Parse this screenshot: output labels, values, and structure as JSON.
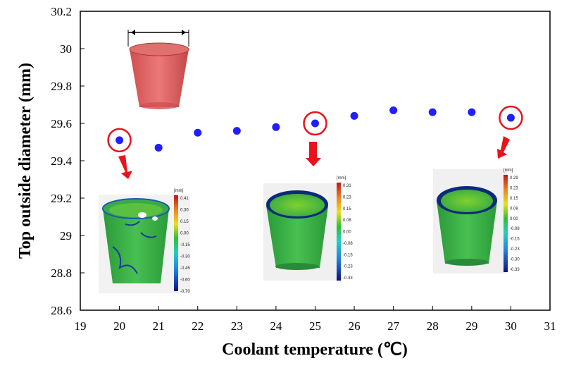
{
  "chart_data": {
    "type": "scatter",
    "title": "",
    "xlabel": "Coolant temperature (℃)",
    "ylabel": "Top outside diameter (mm)",
    "xlim": [
      19,
      31
    ],
    "ylim": [
      28.6,
      30.2
    ],
    "xticks": [
      "19",
      "20",
      "21",
      "22",
      "23",
      "24",
      "25",
      "26",
      "27",
      "28",
      "29",
      "30",
      "31"
    ],
    "yticks": [
      "28.6",
      "28.8",
      "29",
      "29.2",
      "29.4",
      "29.6",
      "29.8",
      "30",
      "30.2"
    ],
    "series": [
      {
        "name": "Top outside diameter",
        "color": "#1f1fff",
        "x": [
          20,
          21,
          22,
          23,
          24,
          25,
          26,
          27,
          28,
          29,
          30
        ],
        "y": [
          29.51,
          29.47,
          29.55,
          29.56,
          29.58,
          29.6,
          29.64,
          29.67,
          29.66,
          29.66,
          29.63
        ]
      }
    ],
    "highlighted_x": [
      20,
      25,
      30
    ],
    "highlight_color": "#e8141c",
    "insets": [
      {
        "name": "deviation-map-20",
        "unit": "[mm]",
        "scale": [
          "0.41",
          "0.30",
          "0.15",
          "0.00",
          "-0.15",
          "-0.30",
          "-0.45",
          "-0.60",
          "-0.70"
        ]
      },
      {
        "name": "deviation-map-25",
        "unit": "[mm]",
        "scale": [
          "0.31",
          "0.23",
          "0.15",
          "0.08",
          "0.00",
          "-0.08",
          "-0.15",
          "-0.23",
          "-0.33"
        ]
      },
      {
        "name": "deviation-map-30",
        "unit": "[mm]",
        "scale": [
          "0.29",
          "0.23",
          "0.15",
          "0.08",
          "0.00",
          "-0.08",
          "-0.15",
          "-0.23",
          "-0.30",
          "-0.33"
        ]
      }
    ]
  }
}
